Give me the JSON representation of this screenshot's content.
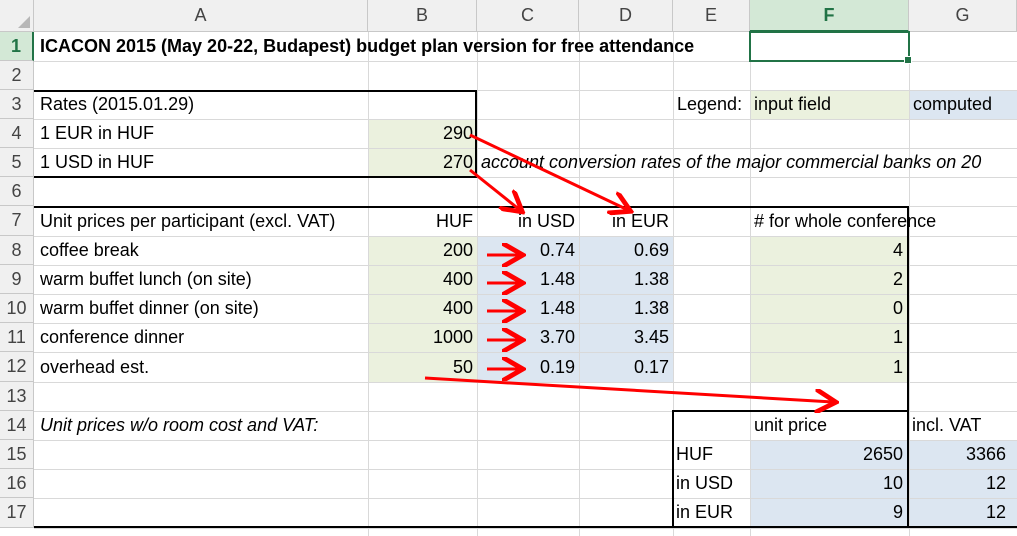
{
  "columns": [
    "A",
    "B",
    "C",
    "D",
    "E",
    "F",
    "G"
  ],
  "rows": [
    "1",
    "2",
    "3",
    "4",
    "5",
    "6",
    "7",
    "8",
    "9",
    "10",
    "11",
    "12",
    "13",
    "14",
    "15",
    "16",
    "17"
  ],
  "selected_column": "F",
  "selected_row": "1",
  "cells": {
    "A1": "ICACON 2015 (May 20-22, Budapest) budget plan version for free attendance",
    "A3": "Rates (2015.01.29)",
    "E3": "Legend:",
    "F3": "input field",
    "G3": "computed",
    "A4": "1 EUR in HUF",
    "B4": "290",
    "A5": "1 USD in HUF",
    "B5": "270",
    "C5": "account conversion rates of the major commercial banks on 20",
    "A7": "Unit prices per participant (excl. VAT)",
    "B7": "HUF",
    "C7": "in USD",
    "D7": "in EUR",
    "F7": "# for whole conference",
    "A8": "coffee break",
    "B8": "200",
    "C8": "0.74",
    "D8": "0.69",
    "F8": "4",
    "A9": "warm buffet lunch (on site)",
    "B9": "400",
    "C9": "1.48",
    "D9": "1.38",
    "F9": "2",
    "A10": "warm buffet dinner (on site)",
    "B10": "400",
    "C10": "1.48",
    "D10": "1.38",
    "F10": "0",
    "A11": "conference dinner",
    "B11": "1000",
    "C11": "3.70",
    "D11": "3.45",
    "F11": "1",
    "A12": "overhead est.",
    "B12": "50",
    "C12": "0.19",
    "D12": "0.17",
    "F12": "1",
    "A14": "Unit prices w/o room cost and VAT:",
    "F14": "unit price",
    "G14": "incl. VAT",
    "E15": "HUF",
    "F15": "2650",
    "G15": "3366",
    "E16": "in USD",
    "F16": "10",
    "G16": "12",
    "E17": "in EUR",
    "F17": "9",
    "G17": "12"
  },
  "colors": {
    "input_fill": "#ebf1de",
    "computed_fill": "#dce6f1",
    "selection": "#217346",
    "arrow": "#ff0000"
  }
}
